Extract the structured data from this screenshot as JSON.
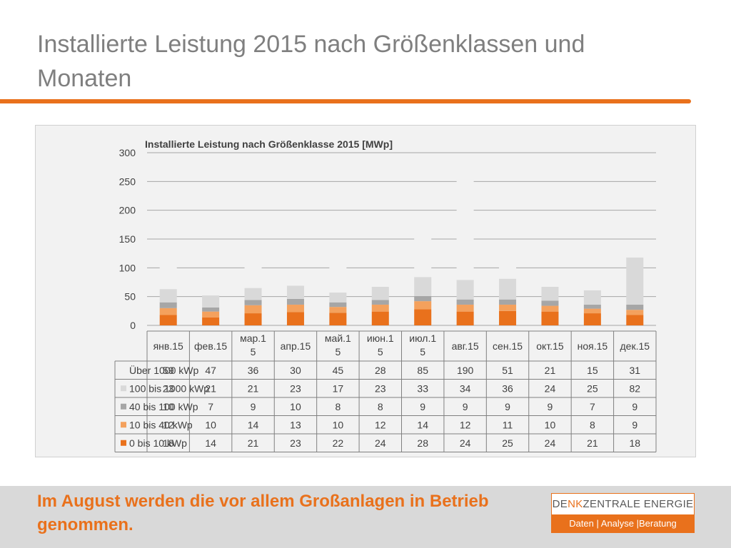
{
  "slide": {
    "title": "Installierte Leistung 2015 nach Größenklassen und Monaten",
    "footer_text": "Im August werden die vor allem Großanlagen in Betrieb genommen."
  },
  "brand": {
    "name_a": "DE",
    "name_b": "NK",
    "name_c": "ZENTRALE ENERGIE",
    "tagline": "Daten | Analyse |Beratung",
    "accent_color": "#e9711c"
  },
  "chart_data": {
    "type": "bar",
    "stacked": true,
    "title": "Installierte Leistung nach Größenklasse 2015 [MWp]",
    "categories": [
      "янв.15",
      "фев.15",
      "мар.15",
      "апр.15",
      "май.15",
      "июн.15",
      "июл.15",
      "авг.15",
      "сен.15",
      "окт.15",
      "ноя.15",
      "дек.15"
    ],
    "category_display": [
      [
        "янв.15"
      ],
      [
        "фев.15"
      ],
      [
        "мар.1",
        "5"
      ],
      [
        "апр.15"
      ],
      [
        "май.1",
        "5"
      ],
      [
        "июн.1",
        "5"
      ],
      [
        "июл.1",
        "5"
      ],
      [
        "авг.15"
      ],
      [
        "сен.15"
      ],
      [
        "окт.15"
      ],
      [
        "ноя.15"
      ],
      [
        "дек.15"
      ]
    ],
    "ylim": [
      0,
      300
    ],
    "yticks": [
      0,
      50,
      100,
      150,
      200,
      250,
      300
    ],
    "grid": true,
    "legend": "data-table",
    "series": [
      {
        "name": "Über 1000 kWp",
        "color": "#f2f2f2",
        "values": [
          59,
          47,
          36,
          30,
          45,
          28,
          85,
          190,
          51,
          21,
          15,
          31
        ]
      },
      {
        "name": "100 bis 1000 kWp",
        "color": "#d9d9d9",
        "values": [
          23,
          21,
          21,
          23,
          17,
          23,
          33,
          34,
          36,
          24,
          25,
          82
        ]
      },
      {
        "name": "40 bis 100 kWp",
        "color": "#a6a6a6",
        "values": [
          10,
          7,
          9,
          10,
          8,
          8,
          9,
          9,
          9,
          9,
          7,
          9
        ]
      },
      {
        "name": "10 bis 40 kWp",
        "color": "#f4a15d",
        "values": [
          12,
          10,
          14,
          13,
          10,
          12,
          14,
          12,
          11,
          10,
          8,
          9
        ]
      },
      {
        "name": "0 bis 10 kWp",
        "color": "#e9711c",
        "values": [
          18,
          14,
          21,
          23,
          22,
          24,
          28,
          24,
          25,
          24,
          21,
          18
        ]
      }
    ]
  }
}
